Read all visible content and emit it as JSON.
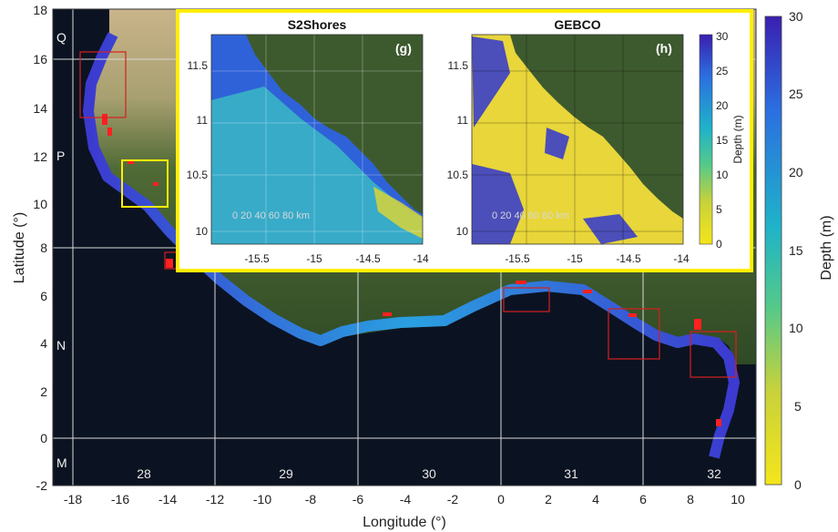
{
  "main_map": {
    "xlabel": "Longitude (°)",
    "ylabel": "Latitude (°)",
    "x_ticks": [
      "-18",
      "-16",
      "-14",
      "-12",
      "-10",
      "-8",
      "-6",
      "-4",
      "-2",
      "0",
      "2",
      "4",
      "6",
      "8",
      "10"
    ],
    "y_ticks": [
      "18",
      "16",
      "14",
      "12",
      "10",
      "8",
      "6",
      "4",
      "2",
      "0",
      "-2"
    ],
    "zone_letters": [
      "Q",
      "P",
      "N",
      "M"
    ],
    "utm_zones": [
      "28",
      "29",
      "30",
      "31",
      "32"
    ]
  },
  "colorbar": {
    "label": "Depth (m)",
    "ticks": [
      "30",
      "25",
      "20",
      "15",
      "10",
      "5",
      "0"
    ],
    "colors": [
      "#3a1fb0",
      "#2b6fe0",
      "#1fb3c9",
      "#54c98a",
      "#c8d23a",
      "#f4e51c"
    ]
  },
  "inset": {
    "border_color": "#ffee00",
    "panels": [
      {
        "title": "S2Shores",
        "label": "(g)"
      },
      {
        "title": "GEBCO",
        "label": "(h)"
      }
    ],
    "x_ticks": [
      "-15.5",
      "-15",
      "-14.5",
      "-14"
    ],
    "y_ticks": [
      "11.5",
      "11",
      "10.5",
      "10"
    ],
    "scale_bar": "0  20  40  60  80  km",
    "colorbar_label": "Depth (m)",
    "colorbar_ticks": [
      "30",
      "25",
      "20",
      "15",
      "10",
      "5",
      "0"
    ]
  }
}
